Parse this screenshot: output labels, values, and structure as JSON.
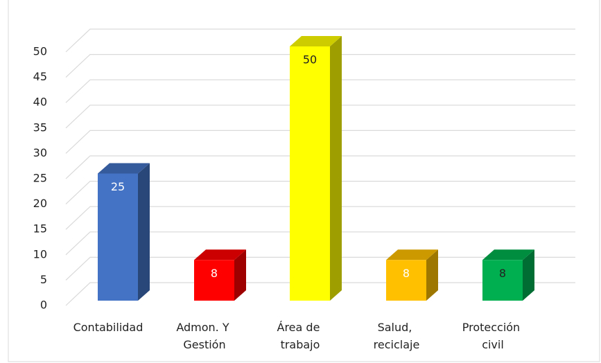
{
  "chart_data": {
    "type": "bar3d",
    "categories": [
      "Contabilidad",
      "Admon. Y Gestión",
      "Área de trabajo",
      "Salud, reciclaje",
      "Protección civil"
    ],
    "values": [
      25,
      8,
      50,
      8,
      8
    ],
    "colors": [
      "#4472c4",
      "#ff0000",
      "#ffff00",
      "#ffc000",
      "#00b050"
    ],
    "label_colors": [
      "#ffffff",
      "#ffffff",
      "#222222",
      "#ffffff",
      "#222222"
    ],
    "ylim": [
      0,
      50
    ],
    "yticks": [
      0,
      5,
      10,
      15,
      20,
      25,
      30,
      35,
      40,
      45,
      50
    ],
    "grid": true
  }
}
